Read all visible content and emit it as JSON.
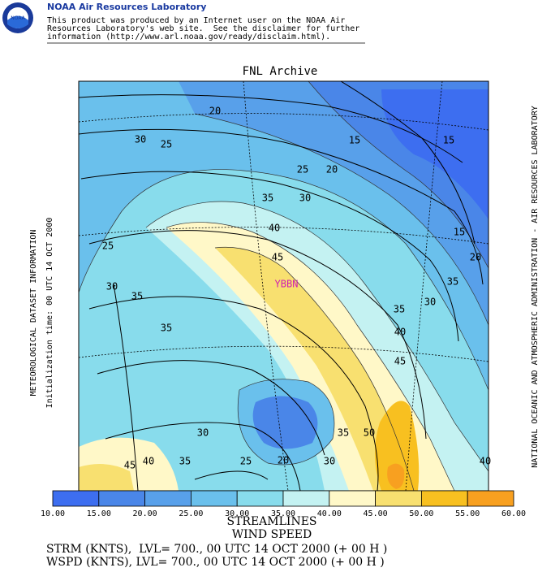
{
  "header": {
    "title": "NOAA Air Resources Laboratory",
    "disclaimer": [
      "This product was produced by an Internet user on the NOAA Air",
      "Resources Laboratory's web site.  See the disclaimer for further",
      "information (http://www.arl.noaa.gov/ready/disclaim.html)."
    ]
  },
  "plot": {
    "title": "FNL Archive",
    "station": "YBBN",
    "left_text": [
      "METEOROLOGICAL DATASET INFORMATION",
      "Initialization time: 00 UTC 14 OCT 2000"
    ],
    "right_text": "NATIONAL OCEANIC AND ATMOSPHERIC ADMINISTRATION - AIR RESOURCES LABORATORY",
    "contour_labels": [
      20,
      30,
      25,
      15,
      15,
      25,
      20,
      35,
      30,
      15,
      40,
      25,
      45,
      20,
      30,
      35,
      35,
      30,
      35,
      40,
      35,
      45,
      30,
      35,
      50,
      45,
      40,
      35,
      25,
      20,
      30,
      40
    ]
  },
  "colorbar": {
    "ticks": [
      "10.00",
      "15.00",
      "20.00",
      "25.00",
      "30.00",
      "35.00",
      "40.00",
      "45.00",
      "50.00",
      "55.00",
      "60.00"
    ],
    "colors": [
      "#3d6ef0",
      "#4a86e8",
      "#58a0ea",
      "#6ac0ec",
      "#88dcec",
      "#c4f2f2",
      "#fff8c8",
      "#f8e070",
      "#f8c020",
      "#f8a020"
    ]
  },
  "footer": [
    "STREAMLINES",
    "WIND SPEED",
    "STRM (KNTS),  LVL= 700., 00 UTC 14 OCT 2000 (+ 00 H )",
    "WSPD (KNTS), LVL= 700., 00 UTC 14 OCT 2000 (+ 00 H )"
  ]
}
